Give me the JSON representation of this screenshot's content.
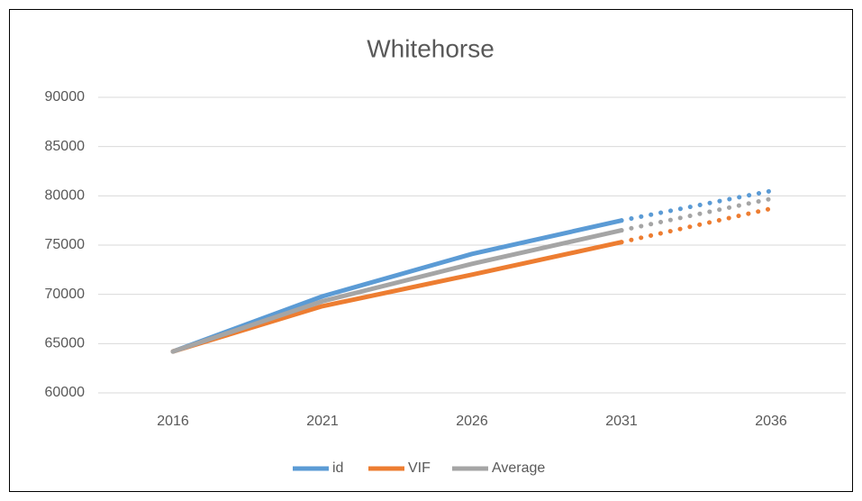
{
  "chart_data": {
    "type": "line",
    "title": "Whitehorse",
    "categories": [
      "2016",
      "2021",
      "2026",
      "2031",
      "2036"
    ],
    "series": [
      {
        "name": "id",
        "color": "#5b9bd5",
        "values": [
          64200,
          69800,
          74100,
          77500,
          80500
        ]
      },
      {
        "name": "VIF",
        "color": "#ed7d31",
        "values": [
          64200,
          68800,
          72000,
          75300,
          78700
        ]
      },
      {
        "name": "Average",
        "color": "#a5a5a5",
        "values": [
          64200,
          69300,
          73100,
          76500,
          79700
        ]
      }
    ],
    "dotted_after": "2031",
    "ylim": [
      60000,
      90000
    ],
    "yticks": [
      60000,
      65000,
      70000,
      75000,
      80000,
      85000,
      90000
    ],
    "grid": true,
    "legend": "bottom"
  }
}
